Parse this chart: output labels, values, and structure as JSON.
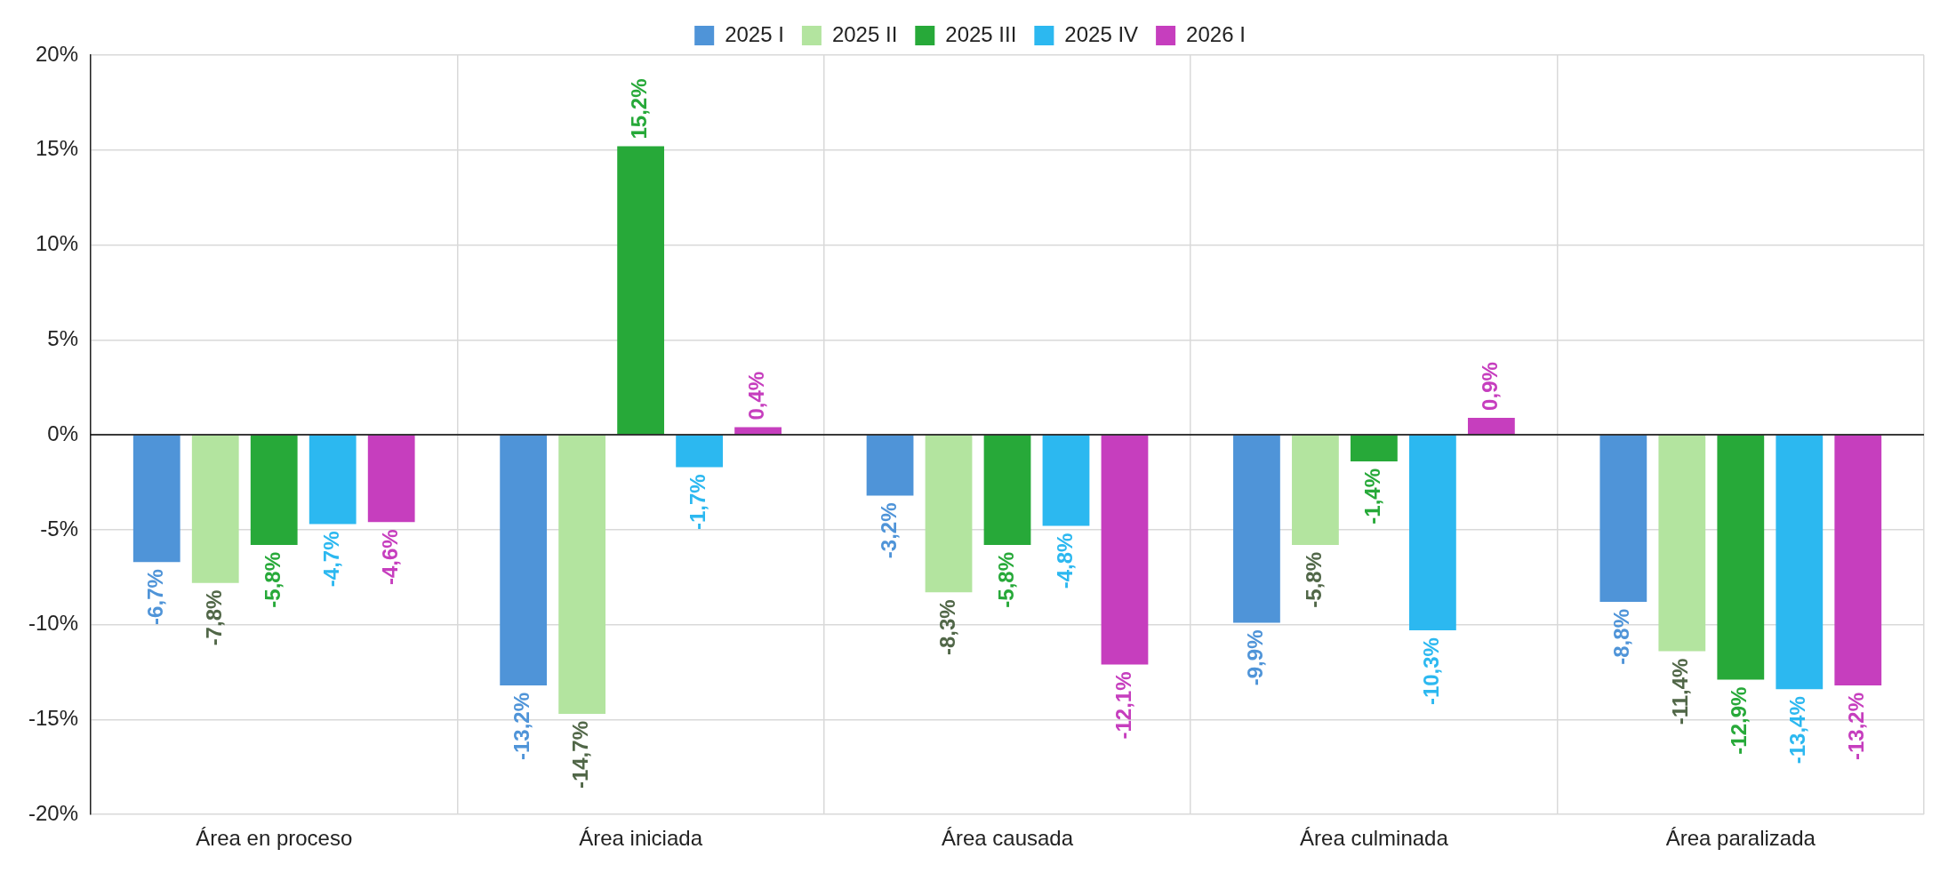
{
  "chart_data": {
    "type": "bar",
    "categories": [
      "Área en proceso",
      "Área iniciada",
      "Área causada",
      "Área culminada",
      "Área paralizada"
    ],
    "series": [
      {
        "name": "2025 I",
        "color": "#4f94d8",
        "values": [
          -6.7,
          -13.2,
          -3.2,
          -9.9,
          -8.8
        ],
        "value_labels": [
          "-6,7%",
          "-13,2%",
          "-3,2%",
          "-9,9%",
          "-8,8%"
        ]
      },
      {
        "name": "2025 II",
        "color": "#b3e49f",
        "values": [
          -7.8,
          -14.7,
          -8.3,
          -5.8,
          -11.4
        ],
        "value_labels": [
          "-7,8%",
          "-14,7%",
          "-8,3%",
          "-5,8%",
          "-11,4%"
        ]
      },
      {
        "name": "2025 III",
        "color": "#27a939",
        "values": [
          -5.8,
          15.2,
          -5.8,
          -1.4,
          -12.9
        ],
        "value_labels": [
          "-5,8%",
          "15,2%",
          "-5,8%",
          "-1,4%",
          "-12,9%"
        ]
      },
      {
        "name": "2025 IV",
        "color": "#2cb8f0",
        "values": [
          -4.7,
          -1.7,
          -4.8,
          -10.3,
          -13.4
        ],
        "value_labels": [
          "-4,7%",
          "-1,7%",
          "-4,8%",
          "-10,3%",
          "-13,4%"
        ]
      },
      {
        "name": "2026 I",
        "color": "#c63ebe",
        "values": [
          -4.6,
          0.4,
          -12.1,
          0.9,
          -13.2
        ],
        "value_labels": [
          "-4,6%",
          "0,4%",
          "-12,1%",
          "0,9%",
          "-13,2%"
        ]
      }
    ],
    "ylim": [
      -20,
      20
    ],
    "yticks": [
      {
        "value": -20,
        "label": "-20%"
      },
      {
        "value": -15,
        "label": "-15%"
      },
      {
        "value": -10,
        "label": "-10%"
      },
      {
        "value": -5,
        "label": "-5%"
      },
      {
        "value": 0,
        "label": "0%"
      },
      {
        "value": 5,
        "label": "5%"
      },
      {
        "value": 10,
        "label": "10%"
      },
      {
        "value": 15,
        "label": "15%"
      },
      {
        "value": 20,
        "label": "20%"
      }
    ],
    "grid": true,
    "legend": "top"
  }
}
